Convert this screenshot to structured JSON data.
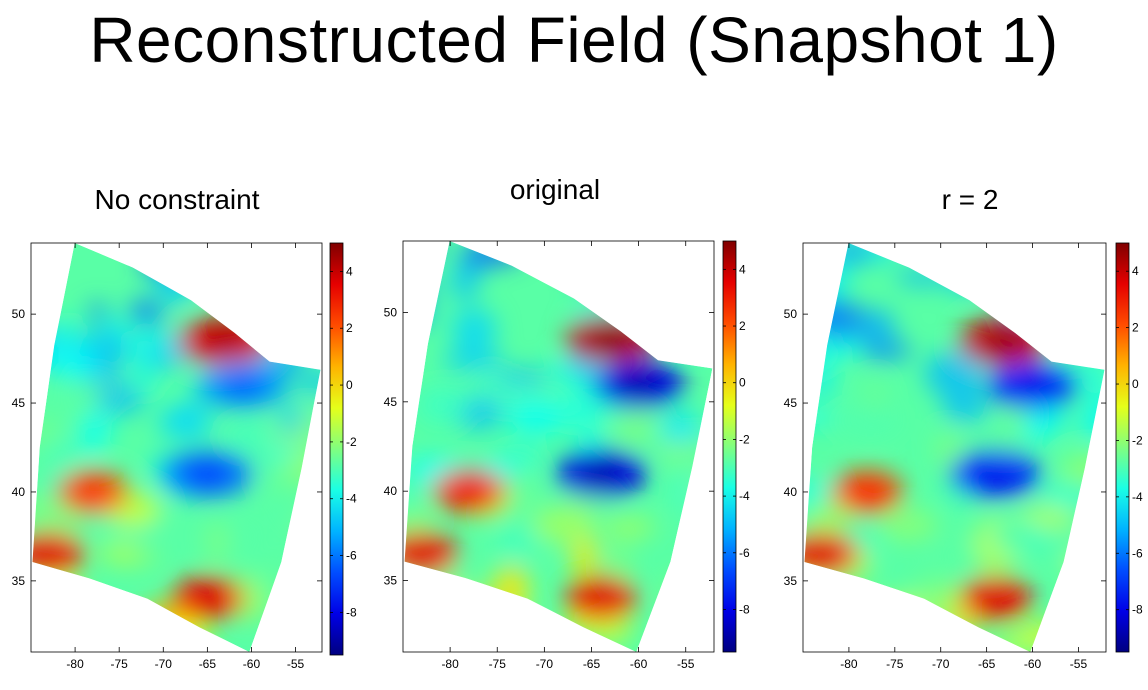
{
  "slide": {
    "title": "Reconstructed Field (Snapshot 1)"
  },
  "colormap": "jet",
  "chart_data": [
    {
      "type": "heatmap",
      "title": "No constraint",
      "xlabel": "",
      "ylabel": "",
      "xlim": [
        -85,
        -52
      ],
      "ylim": [
        31,
        54
      ],
      "xticks": [
        -80,
        -75,
        -70,
        -65,
        -60,
        -55
      ],
      "yticks": [
        35,
        40,
        45,
        50
      ],
      "colorbar": {
        "range": [
          -9.5,
          5
        ],
        "ticks": [
          4,
          2,
          0,
          -2,
          -4,
          -6,
          -8
        ]
      },
      "grid": false,
      "features": [
        {
          "lon": -63,
          "lat": 48.5,
          "value": 3.5
        },
        {
          "lon": -61,
          "lat": 46,
          "value": -5.5
        },
        {
          "lon": -65,
          "lat": 41,
          "value": -6
        },
        {
          "lon": -78,
          "lat": 40,
          "value": 2
        },
        {
          "lon": -83,
          "lat": 36.5,
          "value": 3
        },
        {
          "lon": -65,
          "lat": 34,
          "value": 3
        }
      ]
    },
    {
      "type": "heatmap",
      "title": "original",
      "xlabel": "",
      "ylabel": "",
      "xlim": [
        -85,
        -52
      ],
      "ylim": [
        31,
        54
      ],
      "xticks": [
        -80,
        -75,
        -70,
        -65,
        -60,
        -55
      ],
      "yticks": [
        35,
        40,
        45,
        50
      ],
      "colorbar": {
        "range": [
          -9.5,
          5
        ],
        "ticks": [
          4,
          2,
          0,
          -2,
          -4,
          -6,
          -8
        ]
      },
      "grid": false,
      "features": [
        {
          "lon": -63,
          "lat": 48.5,
          "value": 4
        },
        {
          "lon": -60,
          "lat": 46,
          "value": -8
        },
        {
          "lon": -64,
          "lat": 41,
          "value": -8
        },
        {
          "lon": -78,
          "lat": 40,
          "value": 2.5
        },
        {
          "lon": -83,
          "lat": 36.5,
          "value": 3
        },
        {
          "lon": -64,
          "lat": 34,
          "value": 3
        }
      ]
    },
    {
      "type": "heatmap",
      "title": "r = 2",
      "xlabel": "",
      "ylabel": "",
      "xlim": [
        -85,
        -52
      ],
      "ylim": [
        31,
        54
      ],
      "xticks": [
        -80,
        -75,
        -70,
        -65,
        -60,
        -55
      ],
      "yticks": [
        35,
        40,
        45,
        50
      ],
      "colorbar": {
        "range": [
          -9.5,
          5
        ],
        "ticks": [
          4,
          2,
          0,
          -2,
          -4,
          -6,
          -8
        ]
      },
      "grid": false,
      "features": [
        {
          "lon": -63,
          "lat": 48.5,
          "value": 3.8
        },
        {
          "lon": -60,
          "lat": 46,
          "value": -7
        },
        {
          "lon": -64,
          "lat": 41,
          "value": -7
        },
        {
          "lon": -78,
          "lat": 40,
          "value": 2.2
        },
        {
          "lon": -83,
          "lat": 36.5,
          "value": 3
        },
        {
          "lon": -64,
          "lat": 34,
          "value": 3
        }
      ]
    }
  ]
}
